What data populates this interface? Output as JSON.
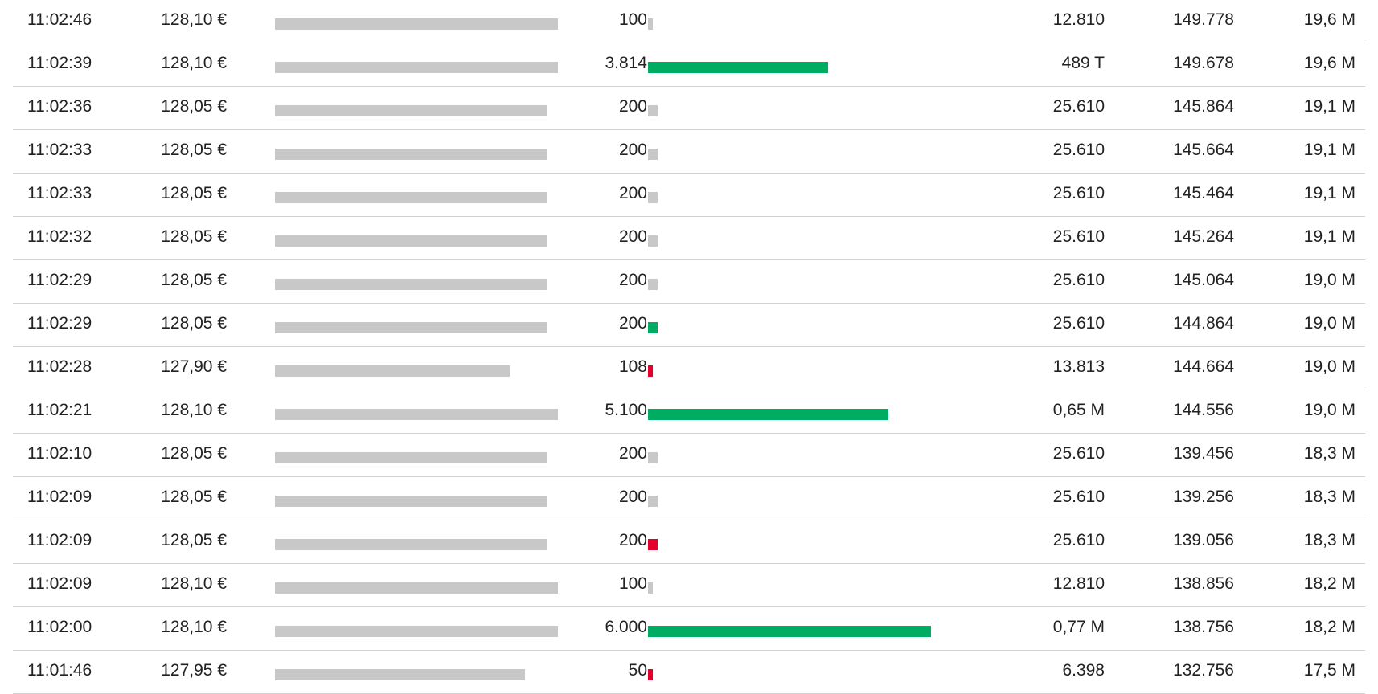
{
  "colors": {
    "neutral": "#c8c8c8",
    "buy": "#00ac62",
    "sell": "#e4002b",
    "divider": "#c9d3de"
  },
  "trades": [
    {
      "time": "11:02:46",
      "price": "128,10 €",
      "price_level": 1.0,
      "volume": "100",
      "volume_share": 0.0166,
      "direction": "neutral",
      "value": "12.810",
      "cumulative_volume": "149.778",
      "turnover": "19,6 M"
    },
    {
      "time": "11:02:39",
      "price": "128,10 €",
      "price_level": 1.0,
      "volume": "3.814",
      "volume_share": 0.636,
      "direction": "buy",
      "value": "489 T",
      "cumulative_volume": "149.678",
      "turnover": "19,6 M"
    },
    {
      "time": "11:02:36",
      "price": "128,05 €",
      "price_level": 0.96,
      "volume": "200",
      "volume_share": 0.0333,
      "direction": "neutral",
      "value": "25.610",
      "cumulative_volume": "145.864",
      "turnover": "19,1 M"
    },
    {
      "time": "11:02:33",
      "price": "128,05 €",
      "price_level": 0.96,
      "volume": "200",
      "volume_share": 0.0333,
      "direction": "neutral",
      "value": "25.610",
      "cumulative_volume": "145.664",
      "turnover": "19,1 M"
    },
    {
      "time": "11:02:33",
      "price": "128,05 €",
      "price_level": 0.96,
      "volume": "200",
      "volume_share": 0.0333,
      "direction": "neutral",
      "value": "25.610",
      "cumulative_volume": "145.464",
      "turnover": "19,1 M"
    },
    {
      "time": "11:02:32",
      "price": "128,05 €",
      "price_level": 0.96,
      "volume": "200",
      "volume_share": 0.0333,
      "direction": "neutral",
      "value": "25.610",
      "cumulative_volume": "145.264",
      "turnover": "19,1 M"
    },
    {
      "time": "11:02:29",
      "price": "128,05 €",
      "price_level": 0.96,
      "volume": "200",
      "volume_share": 0.0333,
      "direction": "neutral",
      "value": "25.610",
      "cumulative_volume": "145.064",
      "turnover": "19,0 M"
    },
    {
      "time": "11:02:29",
      "price": "128,05 €",
      "price_level": 0.96,
      "volume": "200",
      "volume_share": 0.0333,
      "direction": "buy",
      "value": "25.610",
      "cumulative_volume": "144.864",
      "turnover": "19,0 M"
    },
    {
      "time": "11:02:28",
      "price": "127,90 €",
      "price_level": 0.83,
      "volume": "108",
      "volume_share": 0.018,
      "direction": "sell",
      "value": "13.813",
      "cumulative_volume": "144.664",
      "turnover": "19,0 M"
    },
    {
      "time": "11:02:21",
      "price": "128,10 €",
      "price_level": 1.0,
      "volume": "5.100",
      "volume_share": 0.85,
      "direction": "buy",
      "value": "0,65 M",
      "cumulative_volume": "144.556",
      "turnover": "19,0 M"
    },
    {
      "time": "11:02:10",
      "price": "128,05 €",
      "price_level": 0.96,
      "volume": "200",
      "volume_share": 0.0333,
      "direction": "neutral",
      "value": "25.610",
      "cumulative_volume": "139.456",
      "turnover": "18,3 M"
    },
    {
      "time": "11:02:09",
      "price": "128,05 €",
      "price_level": 0.96,
      "volume": "200",
      "volume_share": 0.0333,
      "direction": "neutral",
      "value": "25.610",
      "cumulative_volume": "139.256",
      "turnover": "18,3 M"
    },
    {
      "time": "11:02:09",
      "price": "128,05 €",
      "price_level": 0.96,
      "volume": "200",
      "volume_share": 0.0333,
      "direction": "sell",
      "value": "25.610",
      "cumulative_volume": "139.056",
      "turnover": "18,3 M"
    },
    {
      "time": "11:02:09",
      "price": "128,10 €",
      "price_level": 1.0,
      "volume": "100",
      "volume_share": 0.0166,
      "direction": "neutral",
      "value": "12.810",
      "cumulative_volume": "138.856",
      "turnover": "18,2 M"
    },
    {
      "time": "11:02:00",
      "price": "128,10 €",
      "price_level": 1.0,
      "volume": "6.000",
      "volume_share": 1.0,
      "direction": "buy",
      "value": "0,77 M",
      "cumulative_volume": "138.756",
      "turnover": "18,2 M"
    },
    {
      "time": "11:01:46",
      "price": "127,95 €",
      "price_level": 0.883,
      "volume": "50",
      "volume_share": 0.0083,
      "direction": "sell",
      "value": "6.398",
      "cumulative_volume": "132.756",
      "turnover": "17,5 M"
    }
  ]
}
